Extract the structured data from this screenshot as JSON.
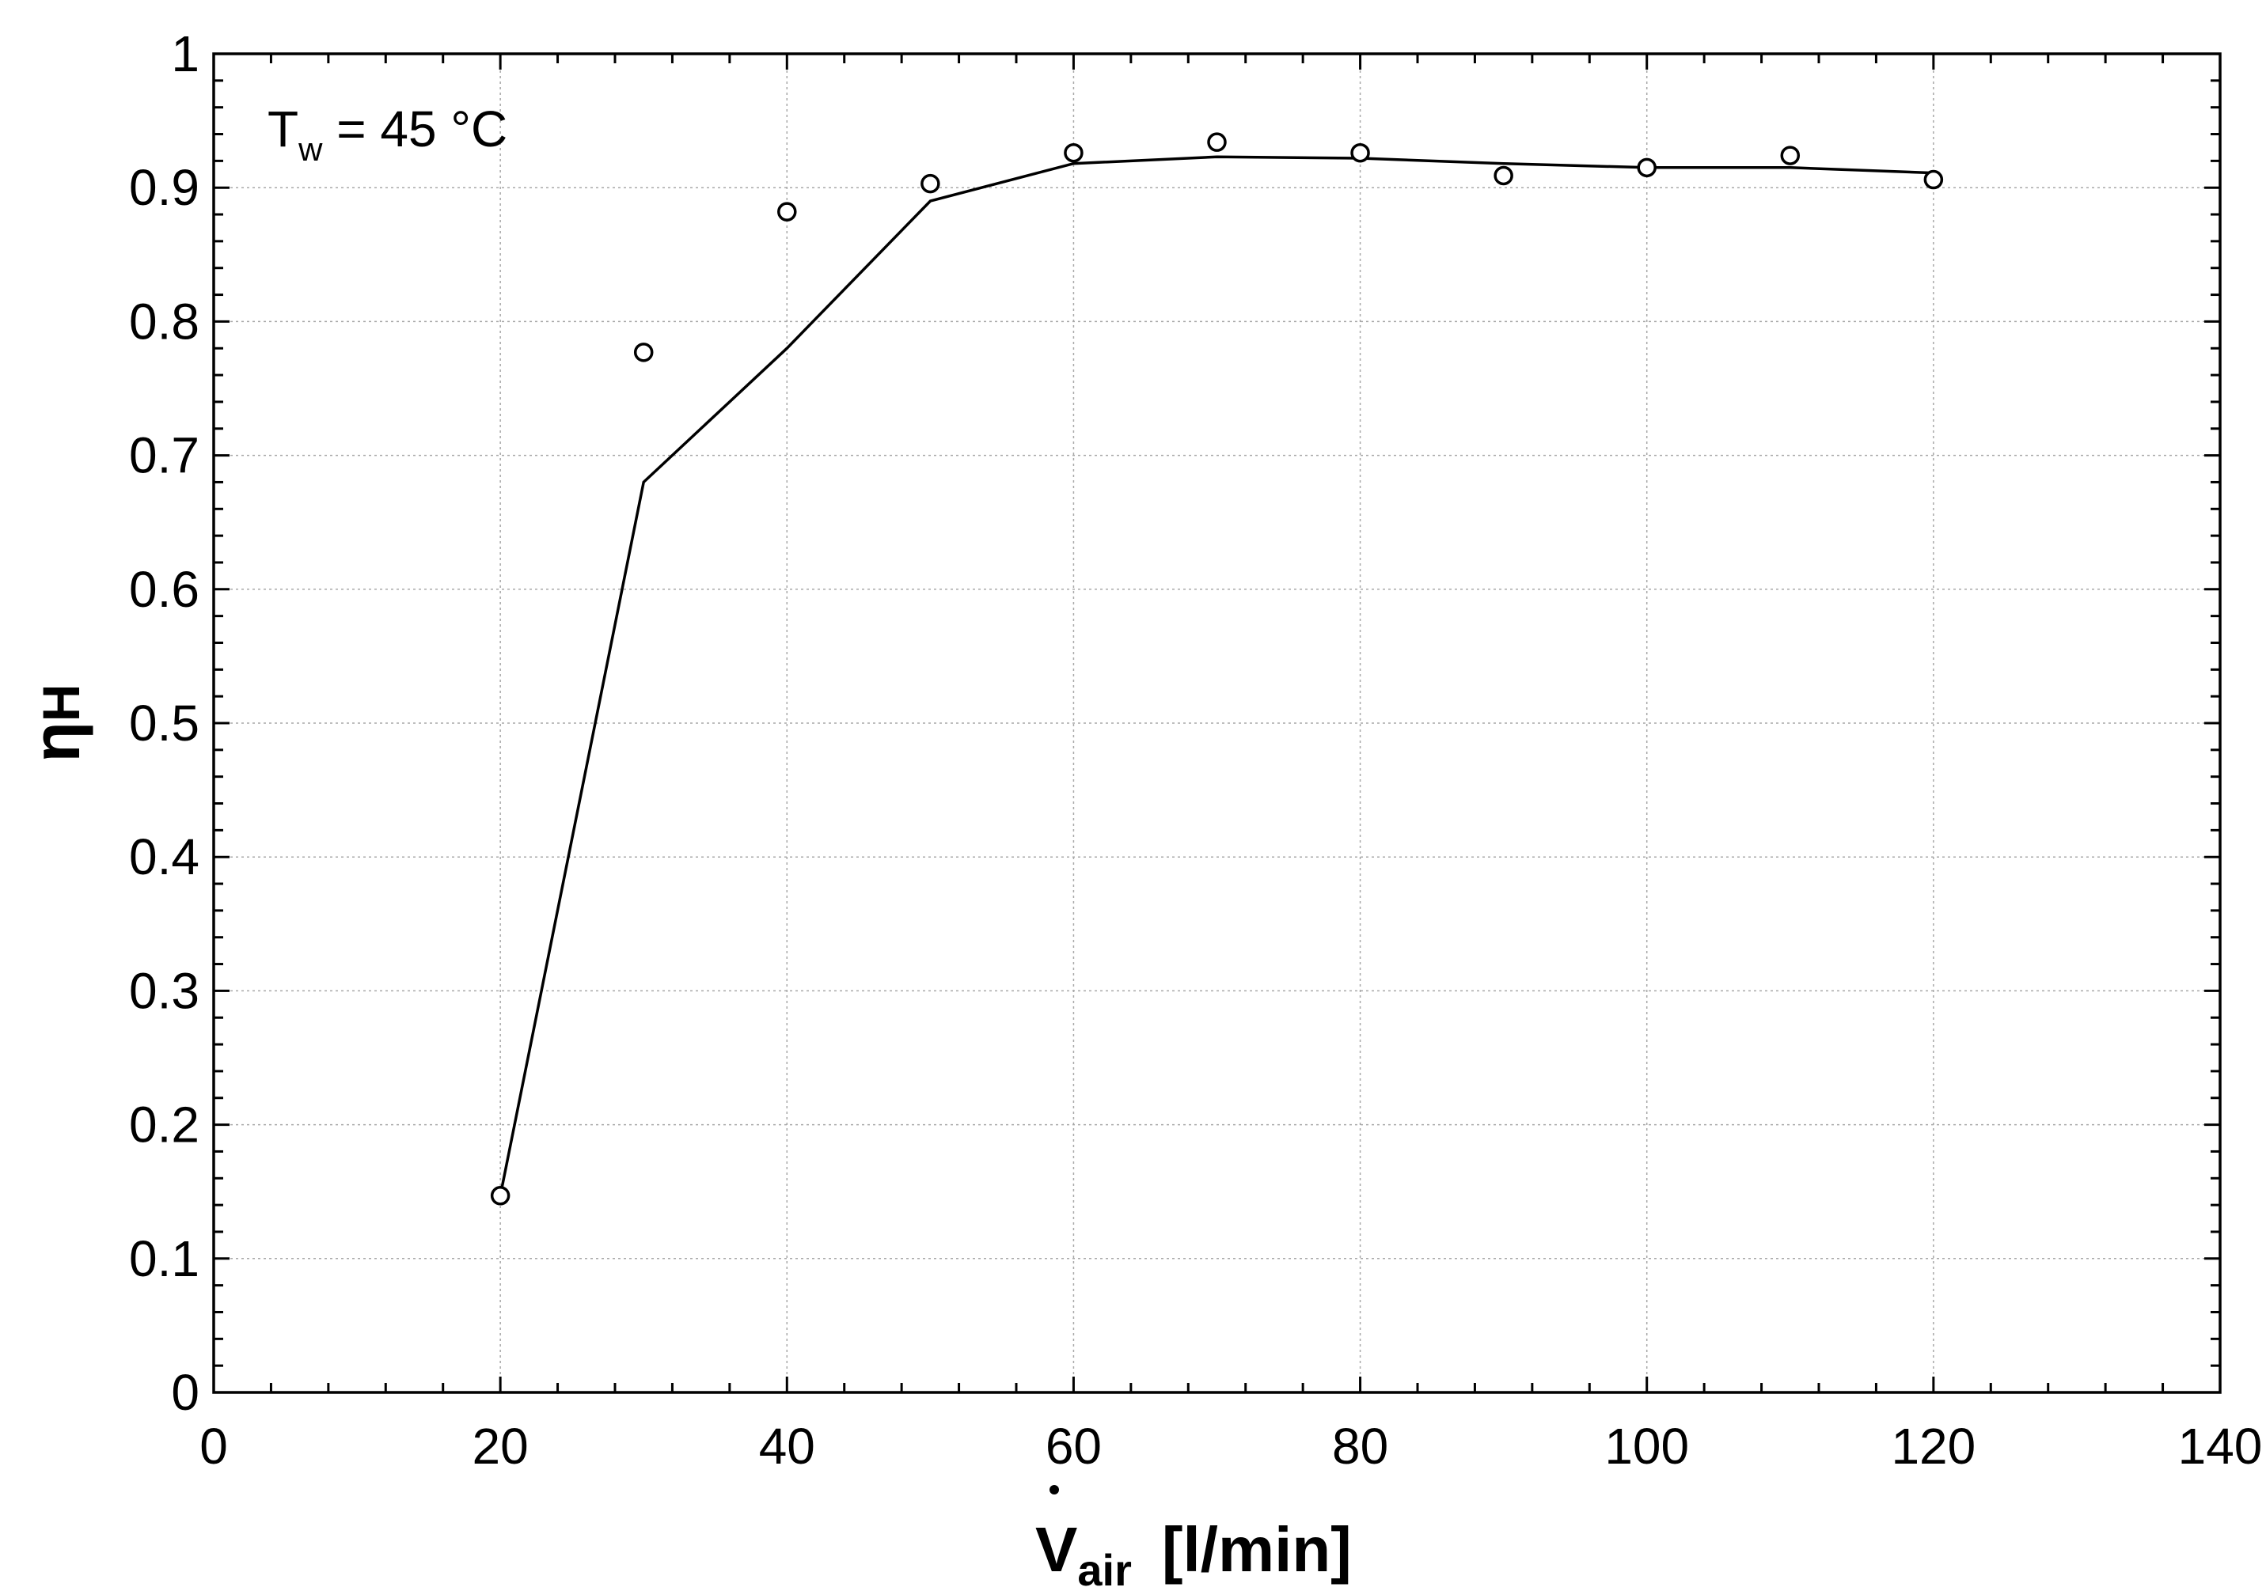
{
  "chart_data": {
    "type": "scatter",
    "title": "",
    "annotation": {
      "base": "T",
      "subscript": "w",
      "rest": " = 45 °C"
    },
    "xlabel": {
      "symbol": "V",
      "subscript": "air",
      "unit": "[l/min]"
    },
    "ylabel": {
      "symbol": "η",
      "subscript": "H"
    },
    "xlim": [
      0,
      140
    ],
    "ylim": [
      0,
      1
    ],
    "x_ticks": [
      {
        "value": 0,
        "label": "0"
      },
      {
        "value": 20,
        "label": "20"
      },
      {
        "value": 40,
        "label": "40"
      },
      {
        "value": 60,
        "label": "60"
      },
      {
        "value": 80,
        "label": "80"
      },
      {
        "value": 100,
        "label": "100"
      },
      {
        "value": 120,
        "label": "120"
      },
      {
        "value": 140,
        "label": "140"
      }
    ],
    "y_ticks": [
      {
        "value": 0,
        "label": "0"
      },
      {
        "value": 0.1,
        "label": "0.1"
      },
      {
        "value": 0.2,
        "label": "0.2"
      },
      {
        "value": 0.3,
        "label": "0.3"
      },
      {
        "value": 0.4,
        "label": "0.4"
      },
      {
        "value": 0.5,
        "label": "0.5"
      },
      {
        "value": 0.6,
        "label": "0.6"
      },
      {
        "value": 0.7,
        "label": "0.7"
      },
      {
        "value": 0.8,
        "label": "0.8"
      },
      {
        "value": 0.9,
        "label": "0.9"
      },
      {
        "value": 1,
        "label": "1"
      }
    ],
    "x_minor_step": 4,
    "y_minor_step": 0.02,
    "grid": true,
    "series": [
      {
        "kind": "markers",
        "marker": "open-circle",
        "x": [
          20,
          30,
          40,
          50,
          60,
          70,
          80,
          90,
          100,
          110,
          120
        ],
        "y": [
          0.147,
          0.777,
          0.882,
          0.903,
          0.926,
          0.934,
          0.926,
          0.909,
          0.915,
          0.924,
          0.906
        ]
      },
      {
        "kind": "line",
        "x": [
          20,
          30,
          40,
          50,
          60,
          70,
          80,
          90,
          100,
          110,
          120
        ],
        "y": [
          0.147,
          0.68,
          0.78,
          0.89,
          0.918,
          0.923,
          0.922,
          0.918,
          0.915,
          0.915,
          0.911
        ]
      }
    ]
  }
}
